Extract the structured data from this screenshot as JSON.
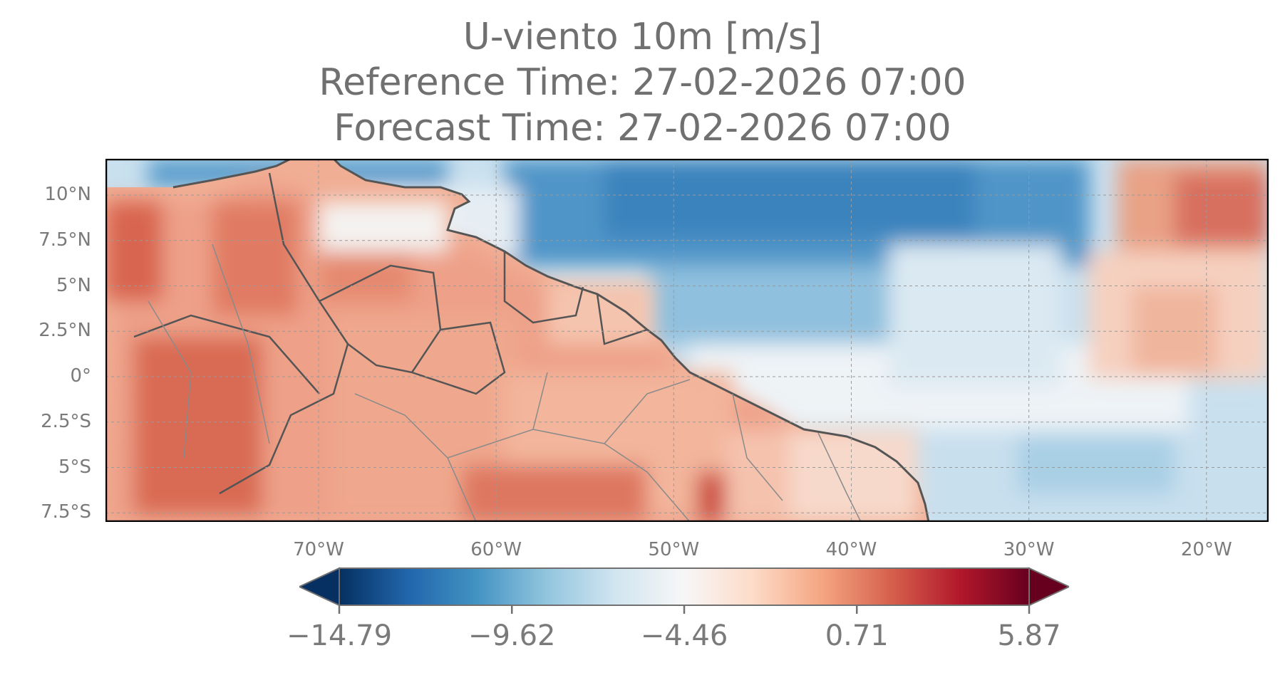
{
  "title": {
    "line1": "U-viento 10m [m/s]",
    "line2": "Reference Time: 27-02-2026 07:00",
    "line3": "Forecast Time: 27-02-2026 07:00"
  },
  "map": {
    "lon_range": [
      -82,
      -16.5
    ],
    "lat_range": [
      -8,
      12
    ],
    "lat_ticks": [
      {
        "value": 10,
        "label": "10°N"
      },
      {
        "value": 7.5,
        "label": "7.5°N"
      },
      {
        "value": 5,
        "label": "5°N"
      },
      {
        "value": 2.5,
        "label": "2.5°N"
      },
      {
        "value": 0,
        "label": "0°"
      },
      {
        "value": -2.5,
        "label": "2.5°S"
      },
      {
        "value": -5,
        "label": "5°S"
      },
      {
        "value": -7.5,
        "label": "7.5°S"
      }
    ],
    "lon_ticks": [
      {
        "value": -70,
        "label": "70°W"
      },
      {
        "value": -60,
        "label": "60°W"
      },
      {
        "value": -50,
        "label": "50°W"
      },
      {
        "value": -40,
        "label": "40°W"
      },
      {
        "value": -30,
        "label": "30°W"
      },
      {
        "value": -20,
        "label": "20°W"
      }
    ],
    "gridlines": true
  },
  "colorbar": {
    "colormap": "RdBu_r",
    "min": -14.79,
    "max": 5.87,
    "ticks": [
      {
        "value": -14.79,
        "label": "−14.79"
      },
      {
        "value": -9.62,
        "label": "−9.62"
      },
      {
        "value": -4.46,
        "label": "−4.46"
      },
      {
        "value": 0.71,
        "label": "0.71"
      },
      {
        "value": 5.87,
        "label": "5.87"
      }
    ],
    "extend": "both",
    "colors": [
      "#053061",
      "#2166ac",
      "#4393c3",
      "#92c5de",
      "#d1e5f0",
      "#f7f7f7",
      "#fddbc7",
      "#f4a582",
      "#d6604d",
      "#b2182b",
      "#67001f"
    ]
  },
  "colors": {
    "text": "#707070",
    "coastline": "#555555",
    "borders": "#8a8a8a"
  }
}
